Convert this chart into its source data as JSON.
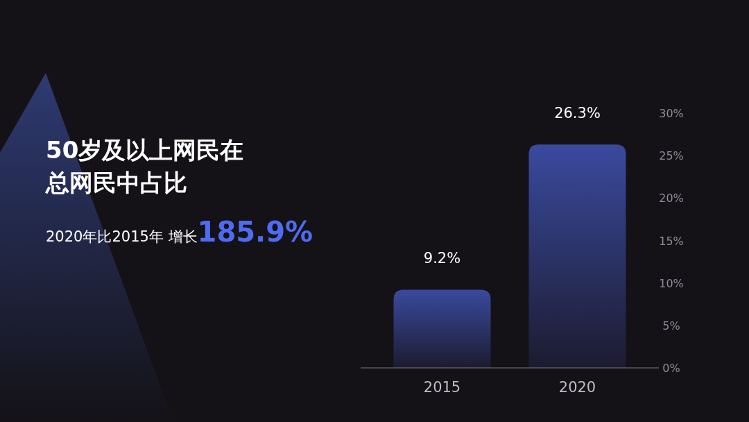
{
  "chart_data": {
    "type": "bar",
    "title": "50岁及以上网民在总网民中占比",
    "subtitle": "2020年比2015年 增长185.9%",
    "categories": [
      "2015",
      "2020"
    ],
    "values": [
      9.2,
      26.3
    ],
    "color": "#3a4a9e",
    "value_labels": [
      "9.2%",
      "26.3%"
    ],
    "ylim": [
      0,
      30
    ],
    "yticks": [
      {
        "value": 0,
        "label": "0%"
      },
      {
        "value": 5,
        "label": "5%"
      },
      {
        "value": 10,
        "label": "10%"
      },
      {
        "value": 15,
        "label": "15%"
      },
      {
        "value": 20,
        "label": "20%"
      },
      {
        "value": 25,
        "label": "25%"
      },
      {
        "value": 30,
        "label": "30%"
      }
    ]
  }
}
